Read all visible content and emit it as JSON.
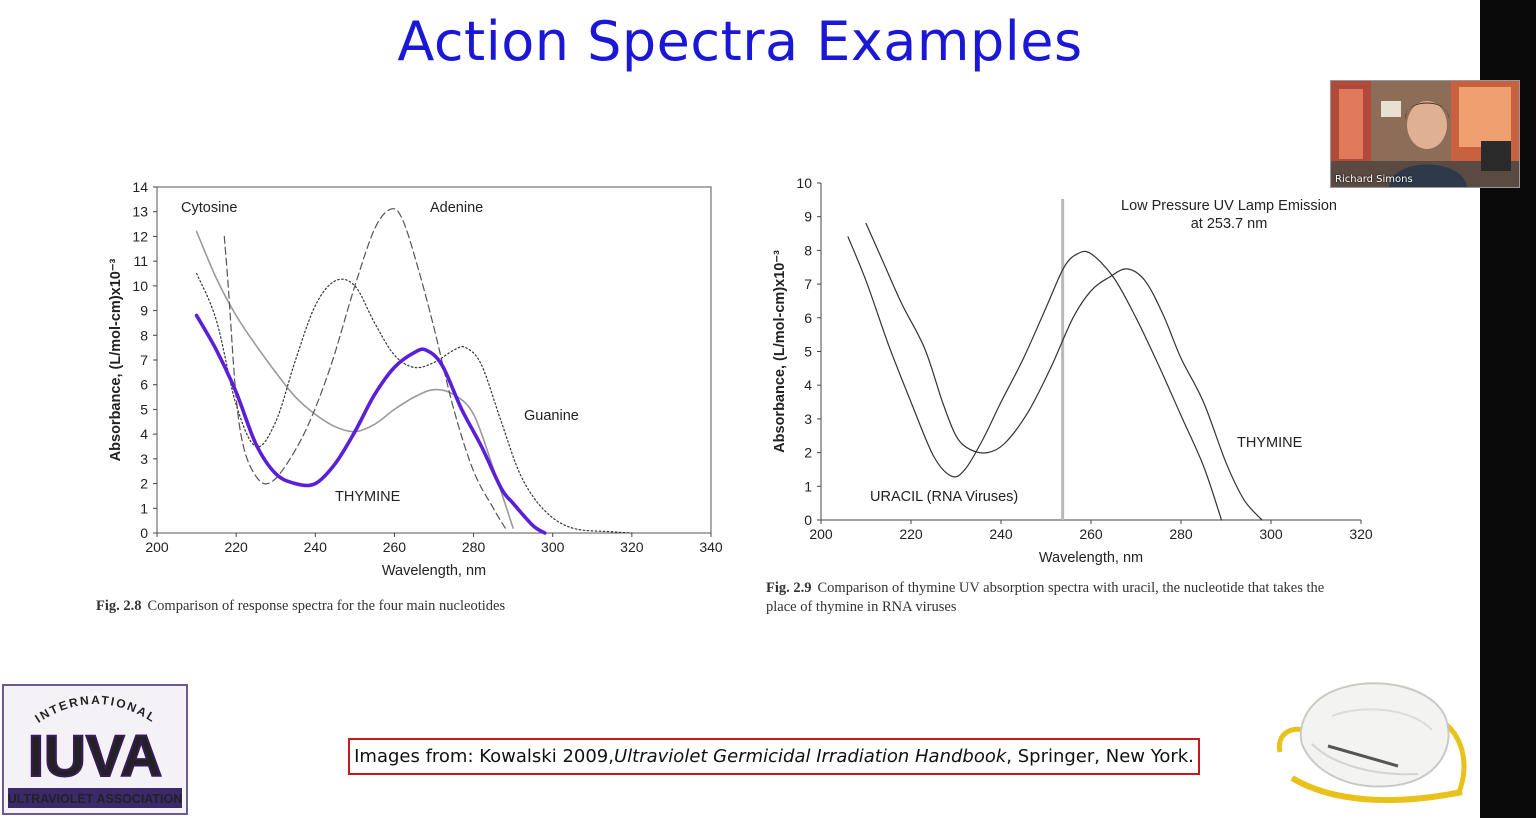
{
  "slide": {
    "title": "Action Spectra Examples",
    "citation": {
      "prefix": "Images from: Kowalski 2009, ",
      "book": "Ultraviolet Germicidal Irradiation Handbook",
      "suffix": ", Springer, New York."
    }
  },
  "video_tile": {
    "participant_name": "Richard Simons"
  },
  "logo": {
    "top_text": "INTERNATIONAL",
    "main_text": "IUVA",
    "bottom_text": "ULTRAVIOLET ASSOCIATION"
  },
  "colors": {
    "title": "#1a18d6",
    "thymine_highlight": "#5a1fd6",
    "citation_border": "#c8171e",
    "uv_line": "#b8b8b8"
  },
  "chart_data": [
    {
      "type": "line",
      "caption_label": "Fig. 2.8",
      "caption_text": "Comparison of response spectra for the four main nucleotides",
      "xlabel": "Wavelength, nm",
      "ylabel": "Absorbance, (L/mol-cm)x10⁻³",
      "xlim": [
        200,
        340
      ],
      "ylim": [
        0,
        14
      ],
      "xticks": [
        "200",
        "220",
        "240",
        "260",
        "280",
        "300",
        "320",
        "340"
      ],
      "yticks": [
        "0",
        "1",
        "2",
        "3",
        "4",
        "5",
        "6",
        "7",
        "8",
        "9",
        "10",
        "11",
        "12",
        "13",
        "14"
      ],
      "grid": false,
      "series": [
        {
          "name": "Cytosine",
          "style": "solid-gray",
          "points": [
            [
              210,
              12.2
            ],
            [
              215,
              10.3
            ],
            [
              220,
              8.8
            ],
            [
              225,
              7.6
            ],
            [
              230,
              6.5
            ],
            [
              235,
              5.5
            ],
            [
              240,
              4.8
            ],
            [
              245,
              4.3
            ],
            [
              250,
              4.1
            ],
            [
              255,
              4.4
            ],
            [
              260,
              5.0
            ],
            [
              265,
              5.5
            ],
            [
              270,
              5.8
            ],
            [
              275,
              5.6
            ],
            [
              280,
              4.8
            ],
            [
              285,
              2.6
            ],
            [
              290,
              0.2
            ]
          ]
        },
        {
          "name": "Adenine",
          "style": "dashed",
          "points": [
            [
              217,
              12.0
            ],
            [
              218,
              10.0
            ],
            [
              220,
              5.5
            ],
            [
              222,
              3.4
            ],
            [
              225,
              2.3
            ],
            [
              228,
              2.0
            ],
            [
              232,
              2.6
            ],
            [
              238,
              4.3
            ],
            [
              244,
              6.8
            ],
            [
              250,
              10.0
            ],
            [
              255,
              12.3
            ],
            [
              259,
              13.1
            ],
            [
              262,
              12.7
            ],
            [
              266,
              10.7
            ],
            [
              270,
              8.3
            ],
            [
              275,
              5.0
            ],
            [
              280,
              2.5
            ],
            [
              285,
              1.0
            ],
            [
              288,
              0.2
            ]
          ]
        },
        {
          "name": "Guanine",
          "style": "dotted",
          "points": [
            [
              210,
              10.5
            ],
            [
              215,
              8.6
            ],
            [
              220,
              5.2
            ],
            [
              225,
              3.5
            ],
            [
              230,
              4.5
            ],
            [
              235,
              7.0
            ],
            [
              240,
              9.2
            ],
            [
              245,
              10.2
            ],
            [
              250,
              10.0
            ],
            [
              255,
              8.5
            ],
            [
              260,
              7.2
            ],
            [
              265,
              6.7
            ],
            [
              270,
              6.9
            ],
            [
              275,
              7.4
            ],
            [
              278,
              7.5
            ],
            [
              282,
              6.8
            ],
            [
              287,
              4.5
            ],
            [
              292,
              2.3
            ],
            [
              298,
              0.9
            ],
            [
              305,
              0.2
            ],
            [
              315,
              0.05
            ],
            [
              320,
              0.0
            ]
          ]
        },
        {
          "name": "THYMINE",
          "style": "bold-purple",
          "points": [
            [
              210,
              8.8
            ],
            [
              215,
              7.4
            ],
            [
              220,
              5.7
            ],
            [
              225,
              3.6
            ],
            [
              230,
              2.4
            ],
            [
              235,
              2.0
            ],
            [
              240,
              2.0
            ],
            [
              245,
              2.8
            ],
            [
              250,
              4.1
            ],
            [
              255,
              5.6
            ],
            [
              260,
              6.7
            ],
            [
              265,
              7.3
            ],
            [
              268,
              7.4
            ],
            [
              272,
              6.8
            ],
            [
              277,
              5.0
            ],
            [
              282,
              3.5
            ],
            [
              287,
              1.8
            ],
            [
              290,
              1.2
            ],
            [
              295,
              0.3
            ],
            [
              298,
              0.0
            ]
          ]
        }
      ],
      "annotations": [
        "Cytosine",
        "Adenine",
        "Guanine",
        "THYMINE"
      ]
    },
    {
      "type": "line",
      "caption_label": "Fig. 2.9",
      "caption_line1": "Comparison of thymine UV absorption spectra with uracil, the nucleotide that takes the",
      "caption_line2": "place of thymine in RNA viruses",
      "xlabel": "Wavelength, nm",
      "ylabel": "Absorbance, (L/mol-cm)x10⁻³",
      "xlim": [
        200,
        320
      ],
      "ylim": [
        0,
        10
      ],
      "xticks": [
        "200",
        "220",
        "240",
        "260",
        "280",
        "300",
        "320"
      ],
      "yticks": [
        "0",
        "1",
        "2",
        "3",
        "4",
        "5",
        "6",
        "7",
        "8",
        "9",
        "10"
      ],
      "grid": false,
      "series": [
        {
          "name": "URACIL (RNA Viruses)",
          "points": [
            [
              206,
              8.4
            ],
            [
              210,
              7.1
            ],
            [
              215,
              5.2
            ],
            [
              220,
              3.5
            ],
            [
              225,
              1.9
            ],
            [
              229,
              1.3
            ],
            [
              232,
              1.5
            ],
            [
              236,
              2.4
            ],
            [
              240,
              3.5
            ],
            [
              245,
              4.8
            ],
            [
              250,
              6.3
            ],
            [
              254,
              7.5
            ],
            [
              257,
              7.9
            ],
            [
              260,
              7.9
            ],
            [
              265,
              7.2
            ],
            [
              270,
              6.0
            ],
            [
              275,
              4.6
            ],
            [
              280,
              3.1
            ],
            [
              285,
              1.6
            ],
            [
              289,
              0.0
            ]
          ]
        },
        {
          "name": "THYMINE",
          "points": [
            [
              210,
              8.8
            ],
            [
              214,
              7.6
            ],
            [
              218,
              6.4
            ],
            [
              223,
              5.1
            ],
            [
              227,
              3.5
            ],
            [
              230,
              2.5
            ],
            [
              233,
              2.1
            ],
            [
              237,
              2.0
            ],
            [
              241,
              2.3
            ],
            [
              246,
              3.2
            ],
            [
              251,
              4.5
            ],
            [
              256,
              6.0
            ],
            [
              260,
              6.8
            ],
            [
              264,
              7.2
            ],
            [
              268,
              7.45
            ],
            [
              272,
              7.1
            ],
            [
              276,
              6.1
            ],
            [
              280,
              4.8
            ],
            [
              285,
              3.5
            ],
            [
              290,
              1.7
            ],
            [
              294,
              0.6
            ],
            [
              298,
              0.0
            ]
          ]
        }
      ],
      "reference_line": {
        "x": 253.7,
        "label_line1": "Low Pressure UV Lamp Emission",
        "label_line2": "at 253.7 nm"
      },
      "annotations": [
        "URACIL (RNA Viruses)",
        "THYMINE"
      ]
    }
  ]
}
